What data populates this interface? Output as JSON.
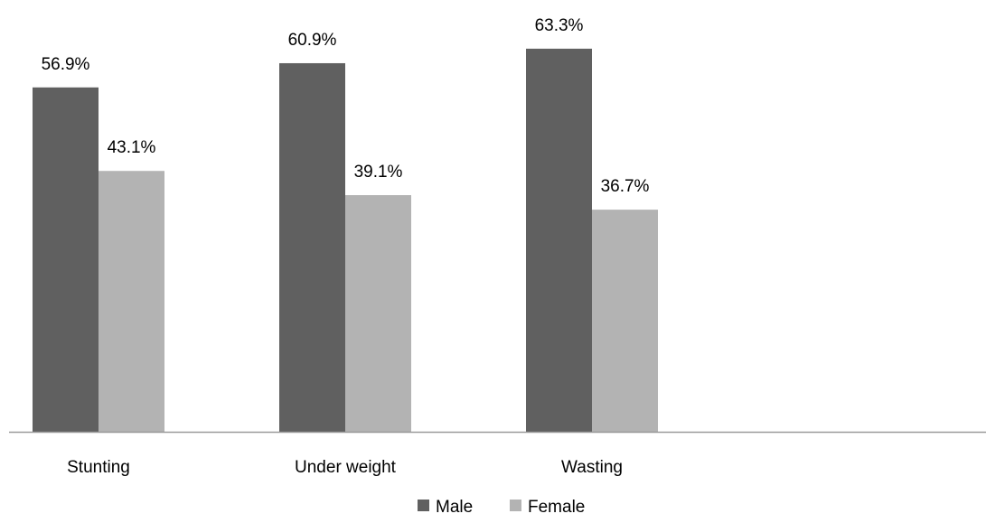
{
  "chart_data": {
    "type": "bar",
    "categories": [
      "Stunting",
      "Under weight",
      "Wasting"
    ],
    "series": [
      {
        "name": "Male",
        "values": [
          56.9,
          60.9,
          63.3
        ],
        "color": "#606060"
      },
      {
        "name": "Female",
        "values": [
          43.1,
          39.1,
          36.7
        ],
        "color": "#b3b3b3"
      }
    ],
    "data_labels": [
      [
        "56.9%",
        "60.9%",
        "63.3%"
      ],
      [
        "43.1%",
        "39.1%",
        "36.7%"
      ]
    ],
    "title": "",
    "xlabel": "",
    "ylabel": "",
    "ylim": [
      0,
      70
    ],
    "grid": false,
    "legend_position": "bottom",
    "axis_color": "#9a9a9a"
  }
}
